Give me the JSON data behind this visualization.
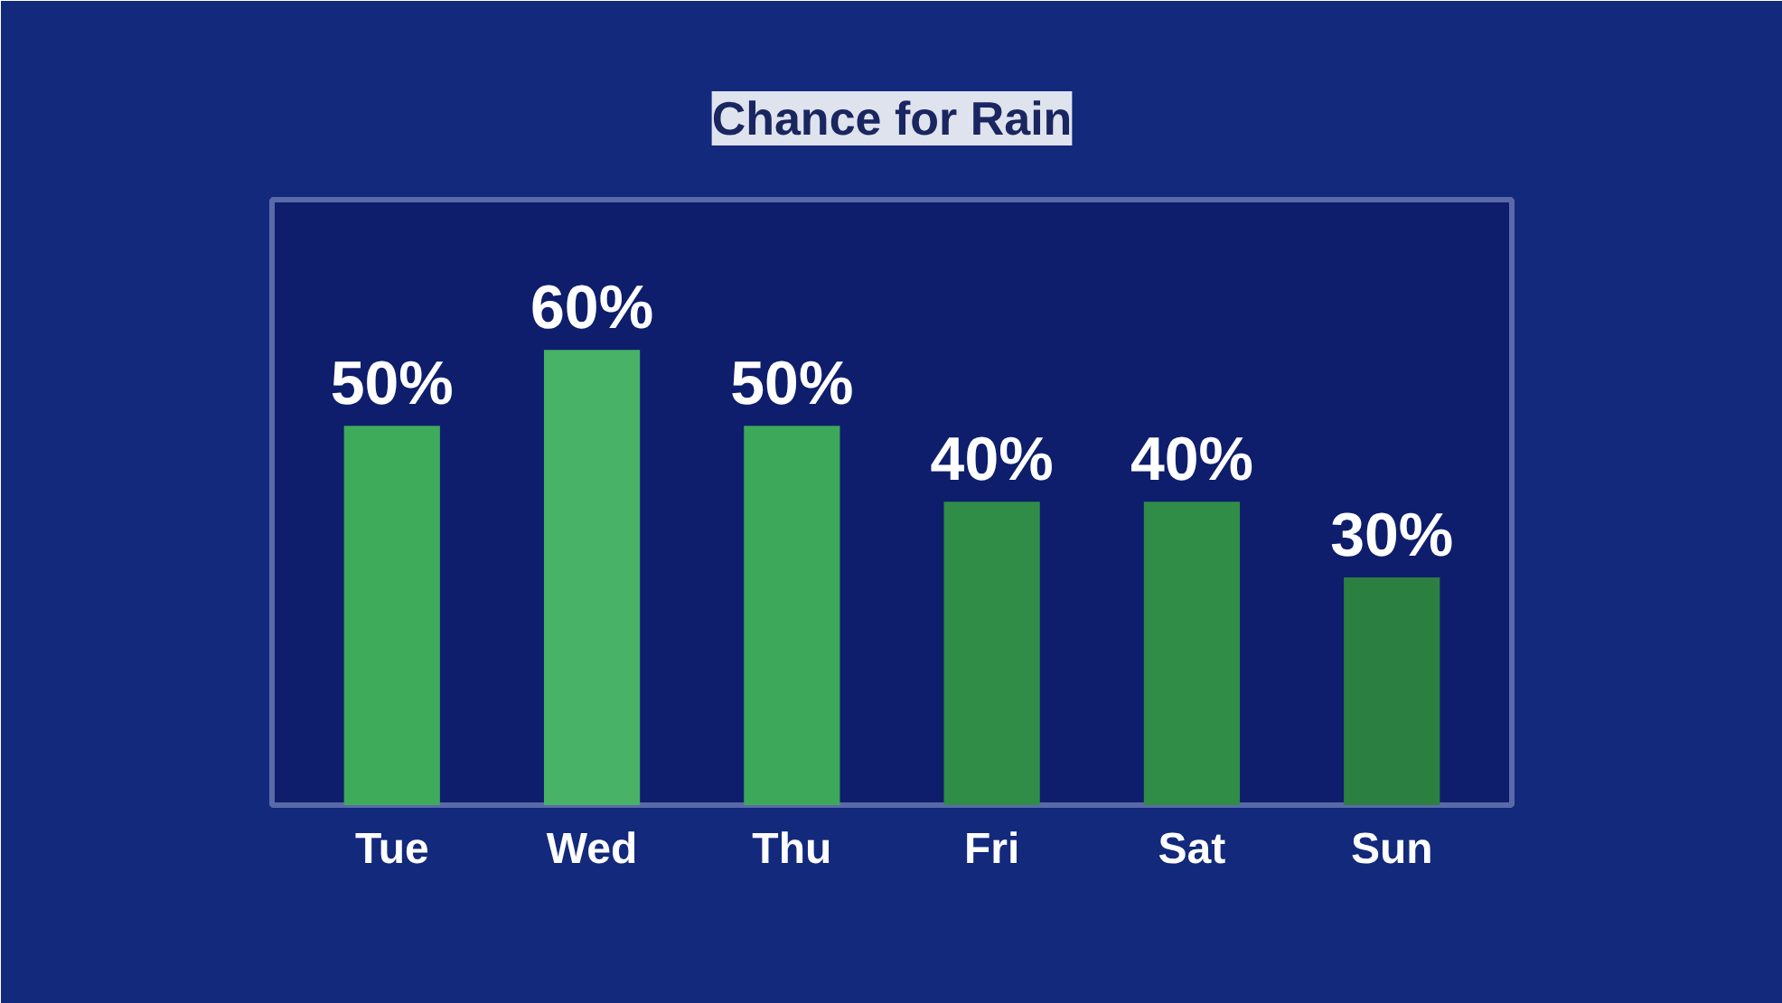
{
  "chart_data": {
    "type": "bar",
    "title": "Chance for Rain",
    "categories": [
      "Tue",
      "Wed",
      "Thu",
      "Fri",
      "Sat",
      "Sun"
    ],
    "values": [
      50,
      60,
      50,
      40,
      40,
      30
    ],
    "colors": [
      "#3eab5b",
      "#48b266",
      "#3da859",
      "#2f8d47",
      "#2f8d47",
      "#2b8041"
    ],
    "value_labels": [
      "50%",
      "60%",
      "50%",
      "40%",
      "40%",
      "30%"
    ],
    "grid": false
  }
}
